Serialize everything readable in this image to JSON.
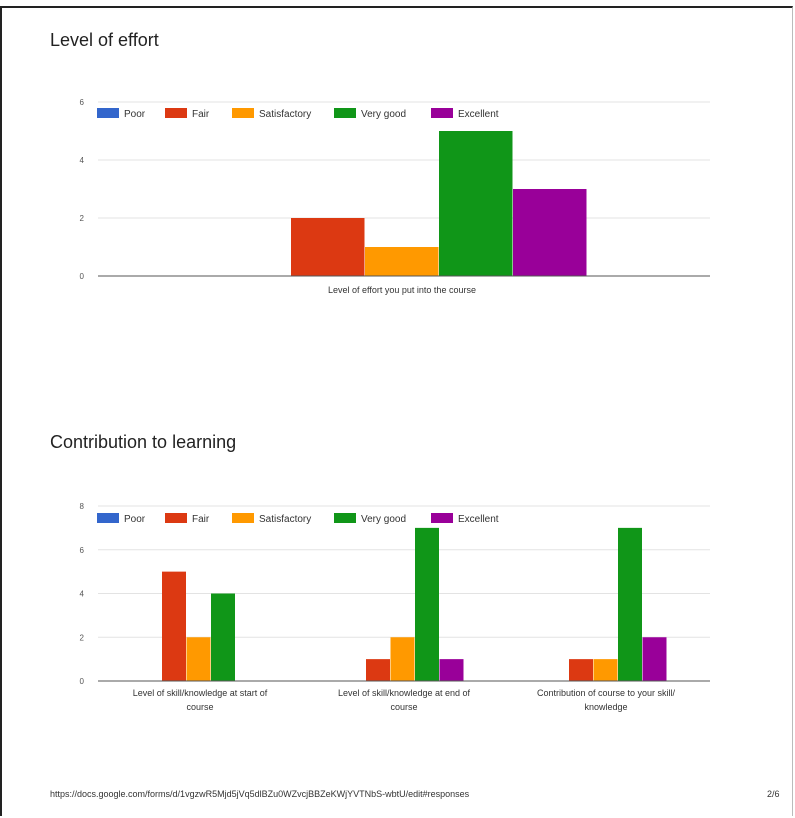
{
  "page": {
    "url": "https://docs.google.com/forms/d/1vgzwR5Mjd5jVq5dlBZu0WZvcjBBZeKWjYVTNbS-wbtU/edit#responses",
    "page_number": "2/6"
  },
  "colors": {
    "Poor": "#3366cc",
    "Fair": "#dc3912",
    "Satisfactory": "#ff9900",
    "Very good": "#109618",
    "Excellent": "#990099"
  },
  "chart_data": [
    {
      "type": "bar",
      "title": "Level of effort",
      "categories": [
        "Level of effort you put into the course"
      ],
      "series": [
        {
          "name": "Poor",
          "values": [
            0
          ]
        },
        {
          "name": "Fair",
          "values": [
            2
          ]
        },
        {
          "name": "Satisfactory",
          "values": [
            1
          ]
        },
        {
          "name": "Very good",
          "values": [
            5
          ]
        },
        {
          "name": "Excellent",
          "values": [
            3
          ]
        }
      ],
      "yticks": [
        "0",
        "2",
        "4",
        "6"
      ],
      "ylim": [
        0,
        6
      ],
      "legend": "top"
    },
    {
      "type": "bar",
      "title": "Contribution to learning",
      "categories": [
        [
          "Level of skill/knowledge at start of",
          "course"
        ],
        [
          "Level of skill/knowledge at end of",
          "course"
        ],
        [
          "Contribution of course to your skill/",
          "knowledge"
        ]
      ],
      "series": [
        {
          "name": "Poor",
          "values": [
            0,
            0,
            0
          ]
        },
        {
          "name": "Fair",
          "values": [
            5,
            1,
            1
          ]
        },
        {
          "name": "Satisfactory",
          "values": [
            2,
            2,
            1
          ]
        },
        {
          "name": "Very good",
          "values": [
            4,
            7,
            7
          ]
        },
        {
          "name": "Excellent",
          "values": [
            0,
            1,
            2
          ]
        }
      ],
      "yticks": [
        "0",
        "2",
        "4",
        "6",
        "8"
      ],
      "ylim": [
        0,
        8
      ],
      "legend": "top"
    }
  ]
}
